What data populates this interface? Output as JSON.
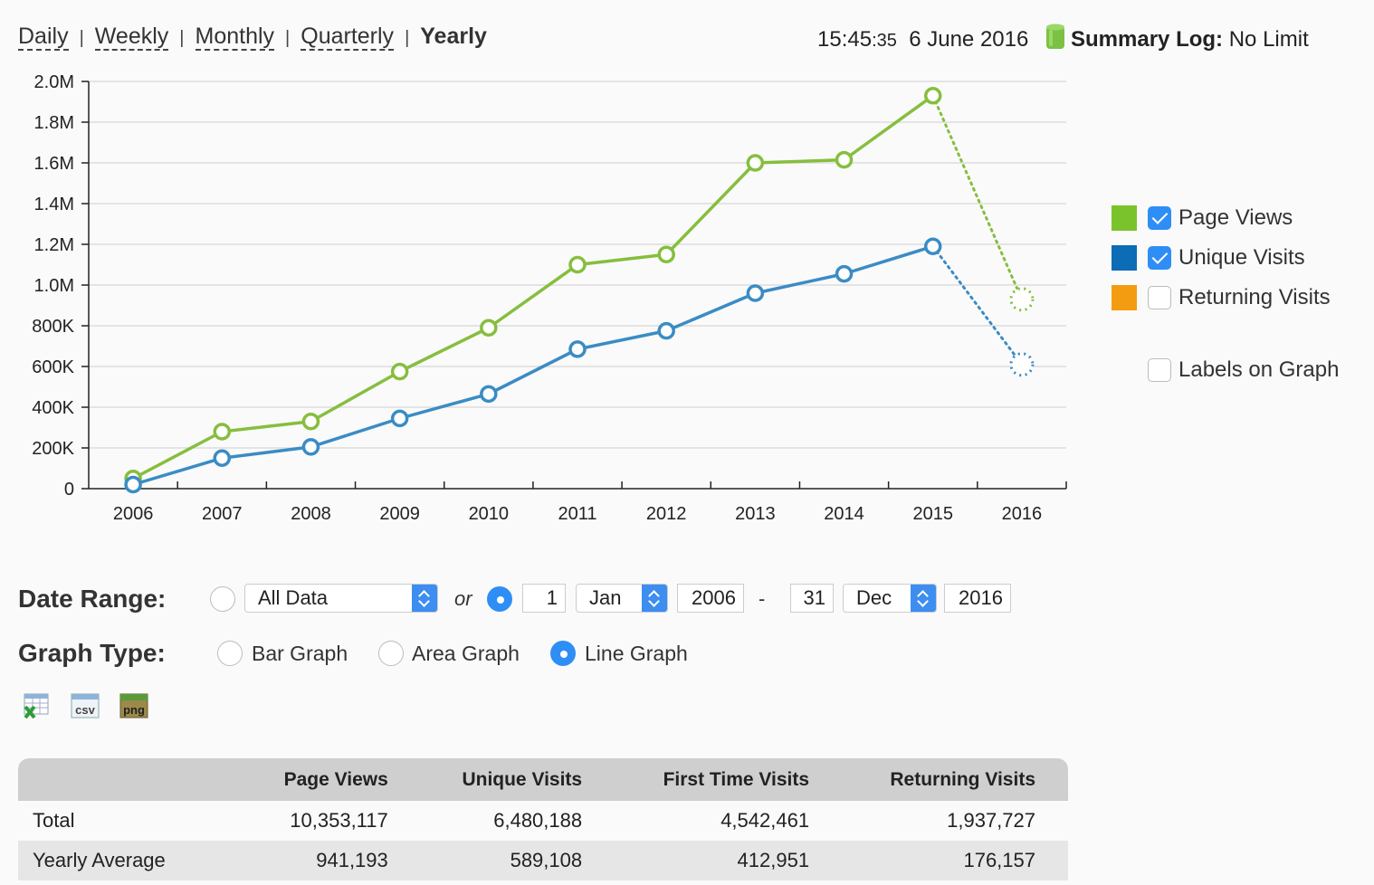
{
  "nav": {
    "tabs": [
      "Daily",
      "Weekly",
      "Monthly",
      "Quarterly",
      "Yearly"
    ],
    "active_tab": "Yearly"
  },
  "status": {
    "time_hm": "15:45",
    "time_s": ":35",
    "date": "6 June 2016",
    "log_label": "Summary Log:",
    "log_value": "No Limit"
  },
  "legend": {
    "items": [
      {
        "label": "Page Views",
        "color": "#7bc32c",
        "checked": true
      },
      {
        "label": "Unique Visits",
        "color": "#0c6cb6",
        "checked": true
      },
      {
        "label": "Returning Visits",
        "color": "#f39c12",
        "checked": false
      }
    ],
    "labels_on_graph": {
      "label": "Labels on Graph",
      "checked": false
    }
  },
  "chart_data": {
    "type": "line",
    "categories": [
      "2006",
      "2007",
      "2008",
      "2009",
      "2010",
      "2011",
      "2012",
      "2013",
      "2014",
      "2015",
      "2016"
    ],
    "series": [
      {
        "name": "Page Views",
        "color": "#86be3e",
        "values": [
          50000,
          280000,
          330000,
          575000,
          790000,
          1100000,
          1150000,
          1600000,
          1615000,
          1930000,
          930000
        ]
      },
      {
        "name": "Unique Visits",
        "color": "#3a8cc4",
        "values": [
          20000,
          150000,
          205000,
          345000,
          465000,
          685000,
          775000,
          960000,
          1055000,
          1190000,
          610000
        ]
      }
    ],
    "projected_last_point": true,
    "y_ticks": [
      "0",
      "200K",
      "400K",
      "600K",
      "800K",
      "1.0M",
      "1.2M",
      "1.4M",
      "1.6M",
      "1.8M",
      "2.0M"
    ],
    "ylim": [
      0,
      2000000
    ],
    "grid": true
  },
  "controls": {
    "date_range_label": "Date Range:",
    "preset": "All Data",
    "or_text": "or",
    "from_day": "1",
    "from_month": "Jan",
    "from_year": "2006",
    "dash": "-",
    "to_day": "31",
    "to_month": "Dec",
    "to_year": "2016",
    "graph_type_label": "Graph Type:",
    "graph_types": [
      "Bar Graph",
      "Area Graph",
      "Line Graph"
    ],
    "selected_graph_type": "Line Graph"
  },
  "export_icons": [
    "excel-icon",
    "csv-icon",
    "png-icon"
  ],
  "table": {
    "headers": [
      "",
      "Page Views",
      "Unique Visits",
      "First Time Visits",
      "Returning Visits"
    ],
    "rows": [
      [
        "Total",
        "10,353,117",
        "6,480,188",
        "4,542,461",
        "1,937,727"
      ],
      [
        "Yearly Average",
        "941,193",
        "589,108",
        "412,951",
        "176,157"
      ]
    ]
  }
}
